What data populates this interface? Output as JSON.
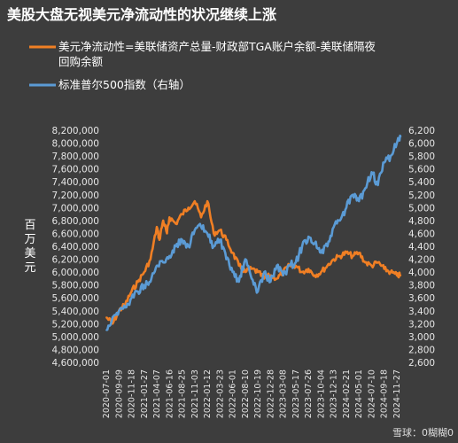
{
  "chart_data": {
    "type": "line",
    "title": "美股大盘无视美元净流动性的状况继续上涨",
    "ylabel": "百万美元",
    "xlabel": "",
    "grid": false,
    "legend_placement": "top-left",
    "watermark": "雪球：0糊糊0",
    "x_tick_labels": [
      "2020-07-01",
      "2020-09-09",
      "2020-11-18",
      "2021-01-27",
      "2021-04-07",
      "2021-06-16",
      "2021-08-25",
      "2021-11-03",
      "2022-01-12",
      "2022-03-23",
      "2022-06-01",
      "2022-08-10",
      "2022-10-19",
      "2022-12-28",
      "2023-03-08",
      "2023-05-17",
      "2023-07-26",
      "2023-10-04",
      "2023-12-13",
      "2024-02-21",
      "2024-05-01",
      "2024-07-10",
      "2024-09-18",
      "2024-11-27"
    ],
    "ylim_left": [
      4600000,
      8200000
    ],
    "ylim_right": [
      2600,
      6200
    ],
    "yticks_left": [
      "4,600,000",
      "4,800,000",
      "5,000,000",
      "5,200,000",
      "5,400,000",
      "5,600,000",
      "5,800,000",
      "6,000,000",
      "6,200,000",
      "6,400,000",
      "6,600,000",
      "6,800,000",
      "7,000,000",
      "7,200,000",
      "7,400,000",
      "7,600,000",
      "7,800,000",
      "8,000,000",
      "8,200,000"
    ],
    "yticks_right": [
      "2,600",
      "2,800",
      "3,000",
      "3,200",
      "3,400",
      "3,600",
      "3,800",
      "4,000",
      "4,200",
      "4,400",
      "4,600",
      "4,800",
      "5,000",
      "5,200",
      "5,400",
      "5,600",
      "5,800",
      "6,000",
      "6,200"
    ],
    "series": [
      {
        "name": "美元净流动性=美联储资产总量-财政部TGA账户余额-美联储隔夜回购余额",
        "color": "#f07f24",
        "axis": "left",
        "x": [
          "2020-07-01",
          "2020-08-05",
          "2020-09-09",
          "2020-10-14",
          "2020-11-18",
          "2020-12-23",
          "2021-01-27",
          "2021-03-03",
          "2021-04-07",
          "2021-04-21",
          "2021-05-12",
          "2021-06-02",
          "2021-06-16",
          "2021-07-21",
          "2021-08-25",
          "2021-09-29",
          "2021-11-03",
          "2021-12-08",
          "2022-01-12",
          "2022-02-16",
          "2022-03-23",
          "2022-04-27",
          "2022-06-01",
          "2022-07-06",
          "2022-08-10",
          "2022-09-14",
          "2022-10-19",
          "2022-11-23",
          "2022-12-28",
          "2023-02-01",
          "2023-03-08",
          "2023-04-12",
          "2023-05-17",
          "2023-06-21",
          "2023-07-26",
          "2023-08-30",
          "2023-10-04",
          "2023-11-08",
          "2023-12-13",
          "2024-01-17",
          "2024-02-21",
          "2024-03-27",
          "2024-05-01",
          "2024-06-05",
          "2024-07-10",
          "2024-08-14",
          "2024-09-18",
          "2024-10-23",
          "2024-11-27",
          "2024-12-18"
        ],
        "values": [
          5300000,
          5200000,
          5400000,
          5500000,
          5700000,
          5850000,
          6000000,
          6200000,
          6700000,
          6500000,
          6800000,
          6600000,
          6850000,
          6750000,
          6900000,
          7000000,
          7100000,
          6850000,
          7100000,
          6600000,
          6650000,
          6500000,
          6300000,
          6100000,
          6000000,
          6050000,
          6000000,
          5900000,
          5950000,
          5900000,
          6000000,
          6100000,
          6100000,
          6000000,
          6050000,
          5950000,
          6000000,
          6100000,
          6200000,
          6250000,
          6300000,
          6250000,
          6300000,
          6150000,
          6100000,
          6150000,
          6050000,
          6000000,
          5950000,
          5950000
        ]
      },
      {
        "name": "标准普尔500指数（右轴）",
        "color": "#5b9bd5",
        "axis": "right",
        "x": [
          "2020-07-01",
          "2020-08-05",
          "2020-09-09",
          "2020-10-14",
          "2020-11-18",
          "2020-12-23",
          "2021-01-27",
          "2021-03-03",
          "2021-04-07",
          "2021-05-12",
          "2021-06-16",
          "2021-07-21",
          "2021-08-25",
          "2021-09-29",
          "2021-11-03",
          "2021-12-08",
          "2022-01-12",
          "2022-02-16",
          "2022-03-23",
          "2022-04-27",
          "2022-06-01",
          "2022-07-06",
          "2022-08-10",
          "2022-09-14",
          "2022-10-19",
          "2022-11-23",
          "2022-12-28",
          "2023-02-01",
          "2023-03-08",
          "2023-04-12",
          "2023-05-17",
          "2023-06-21",
          "2023-07-26",
          "2023-08-30",
          "2023-10-04",
          "2023-11-08",
          "2023-12-13",
          "2024-01-17",
          "2024-02-21",
          "2024-03-27",
          "2024-05-01",
          "2024-06-05",
          "2024-07-10",
          "2024-08-14",
          "2024-09-18",
          "2024-10-23",
          "2024-11-27",
          "2024-12-18"
        ],
        "values": [
          3100,
          3300,
          3400,
          3450,
          3600,
          3700,
          3800,
          3850,
          4100,
          4150,
          4250,
          4400,
          4500,
          4400,
          4650,
          4700,
          4600,
          4400,
          4500,
          4200,
          4000,
          3850,
          4200,
          3900,
          3700,
          4000,
          3850,
          4100,
          3950,
          4100,
          4150,
          4400,
          4550,
          4450,
          4300,
          4400,
          4700,
          4800,
          5000,
          5200,
          5100,
          5300,
          5550,
          5350,
          5700,
          5800,
          6000,
          6100
        ]
      }
    ]
  }
}
